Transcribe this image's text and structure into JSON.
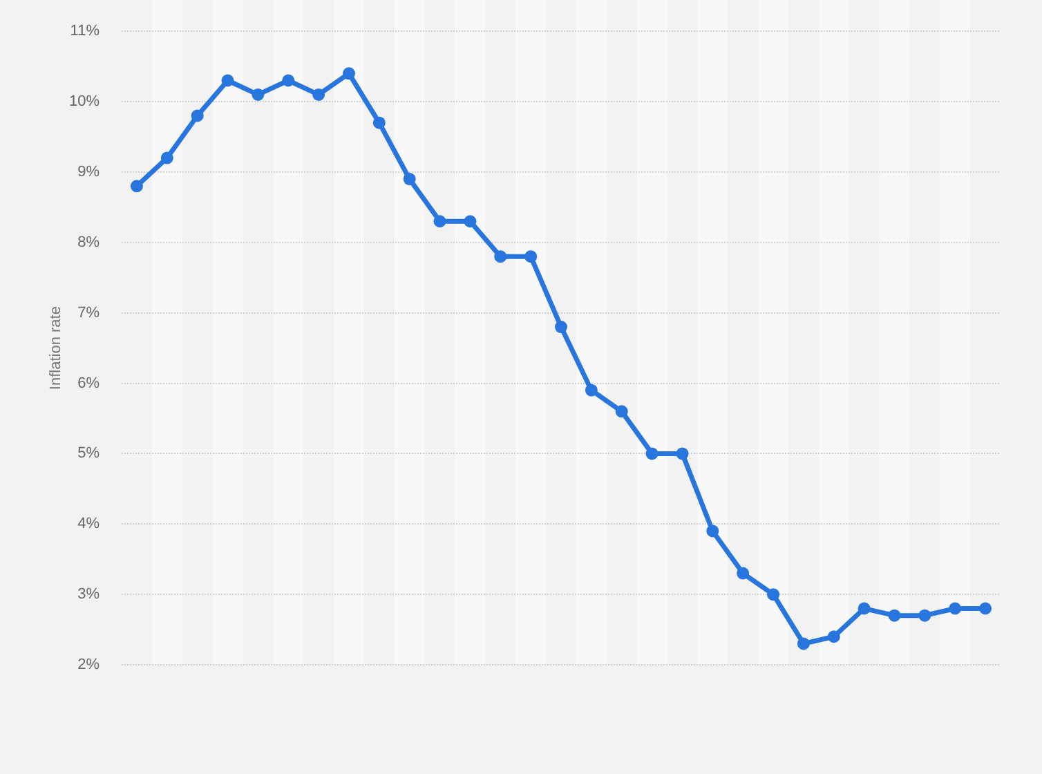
{
  "chart_data": {
    "type": "line",
    "ylabel": "Inflation rate",
    "categories": [
      null,
      null,
      null,
      null,
      null,
      null,
      null,
      null,
      null,
      null,
      null,
      null,
      null,
      null,
      null,
      null,
      null,
      null,
      null,
      null,
      null,
      null,
      null,
      null,
      null,
      null,
      null,
      null,
      null
    ],
    "values": [
      8.8,
      9.2,
      9.8,
      10.3,
      10.1,
      10.3,
      10.1,
      10.4,
      9.7,
      8.9,
      8.3,
      8.3,
      7.8,
      7.8,
      6.8,
      5.9,
      5.6,
      5.0,
      5.0,
      3.9,
      3.3,
      3.0,
      2.3,
      2.4,
      2.8,
      2.7,
      2.7,
      2.8,
      2.8
    ],
    "color": "#2876dd",
    "ylim": [
      2,
      11
    ],
    "yticks": [
      {
        "value": 2,
        "label": "2%"
      },
      {
        "value": 3,
        "label": "3%"
      },
      {
        "value": 4,
        "label": "4%"
      },
      {
        "value": 5,
        "label": "5%"
      },
      {
        "value": 6,
        "label": "6%"
      },
      {
        "value": 7,
        "label": "7%"
      },
      {
        "value": 8,
        "label": "8%"
      },
      {
        "value": 9,
        "label": "9%"
      },
      {
        "value": 10,
        "label": "10%"
      },
      {
        "value": 11,
        "label": "11%"
      }
    ],
    "grid": "y",
    "tick_labels": "y",
    "marker": "circle",
    "line_style": "solid"
  }
}
